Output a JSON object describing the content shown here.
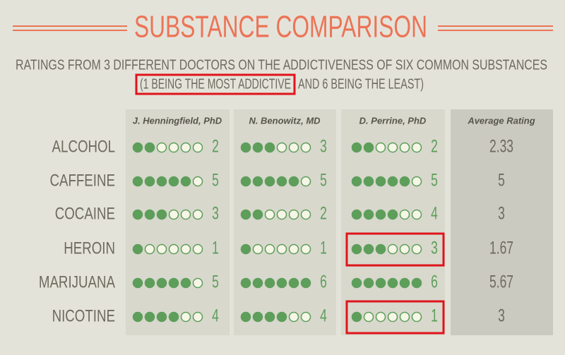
{
  "header": {
    "title": "SUBSTANCE COMPARISON",
    "subtitle": "RATINGS FROM 3 DIFFERENT DOCTORS ON THE ADDICTIVENESS OF SIX COMMON SUBSTANCES",
    "note_highlighted": "(1 BEING THE MOST ADDICTIVE",
    "note_rest": "AND 6 BEING THE LEAST)"
  },
  "table": {
    "columns": [
      "J. Henningfield, PhD",
      "N. Benowitz, MD",
      "D. Perrine, PhD",
      "Average Rating"
    ],
    "rows": [
      {
        "substance": "ALCOHOL",
        "ratings": [
          2,
          3,
          2
        ],
        "average": 2.33
      },
      {
        "substance": "CAFFEINE",
        "ratings": [
          5,
          5,
          5
        ],
        "average": 5
      },
      {
        "substance": "COCAINE",
        "ratings": [
          3,
          2,
          4
        ],
        "average": 3
      },
      {
        "substance": "HEROIN",
        "ratings": [
          1,
          1,
          3
        ],
        "average": 1.67
      },
      {
        "substance": "MARIJUANA",
        "ratings": [
          5,
          6,
          6
        ],
        "average": 5.67
      },
      {
        "substance": "NICOTINE",
        "ratings": [
          4,
          4,
          1
        ],
        "average": 3
      }
    ]
  }
}
